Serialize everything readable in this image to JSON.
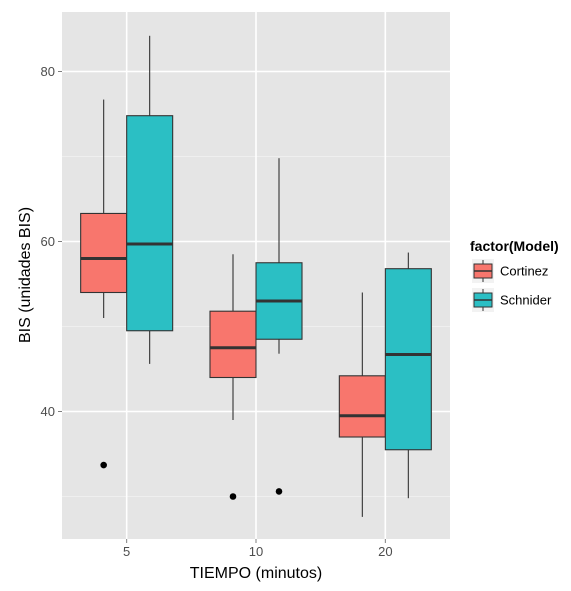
{
  "chart_data": {
    "type": "boxplot",
    "xlabel": "TIEMPO (minutos)",
    "ylabel": "BIS (unidades BIS)",
    "categories": [
      "5",
      "10",
      "20"
    ],
    "yticks": [
      40,
      60,
      80
    ],
    "ylim": [
      25,
      87
    ],
    "grid": true,
    "legend": {
      "title": "factor(Model)",
      "position": "right"
    },
    "series": [
      {
        "name": "Cortinez",
        "color": "#F8766D",
        "boxes": [
          {
            "category": "5",
            "min": 51,
            "q1": 54,
            "median": 58,
            "q3": 63.3,
            "max": 76.7,
            "outliers": [
              33.7
            ]
          },
          {
            "category": "10",
            "min": 39,
            "q1": 44,
            "median": 47.5,
            "q3": 51.8,
            "max": 58.5,
            "outliers": [
              30
            ]
          },
          {
            "category": "20",
            "min": 27.6,
            "q1": 37,
            "median": 39.5,
            "q3": 44.2,
            "max": 54,
            "outliers": []
          }
        ]
      },
      {
        "name": "Schnider",
        "color": "#2BBFC4",
        "boxes": [
          {
            "category": "5",
            "min": 45.6,
            "q1": 49.5,
            "median": 59.7,
            "q3": 74.8,
            "max": 84.2,
            "outliers": []
          },
          {
            "category": "10",
            "min": 46.8,
            "q1": 48.5,
            "median": 53,
            "q3": 57.5,
            "max": 69.8,
            "outliers": [
              30.6
            ]
          },
          {
            "category": "20",
            "min": 29.8,
            "q1": 35.5,
            "median": 46.7,
            "q3": 56.8,
            "max": 58.7,
            "outliers": []
          }
        ]
      }
    ]
  }
}
